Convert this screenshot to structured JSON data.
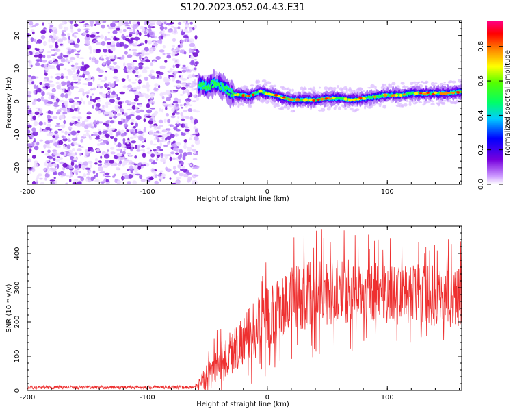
{
  "figure": {
    "title": "S120.2023.052.04.43.E31"
  },
  "chart_data": [
    {
      "type": "heatmap",
      "xlabel": "Height of straight line (km)",
      "ylabel": "Frequency (Hz)",
      "xlim": [
        -200,
        162
      ],
      "ylim": [
        -25,
        24.5
      ],
      "x_ticks": [
        -200,
        -100,
        0,
        100
      ],
      "y_ticks": [
        -20,
        -10,
        0,
        10,
        20
      ],
      "noise_region_x": [
        -200,
        -58
      ],
      "signal_ridge": {
        "x": [
          -57,
          -50,
          -45,
          -40,
          -35,
          -30,
          -25,
          -20,
          -15,
          -10,
          -5,
          0,
          10,
          20,
          30,
          40,
          50,
          60,
          70,
          80,
          90,
          100,
          110,
          120,
          130,
          140,
          150,
          162
        ],
        "freq": [
          5,
          4.5,
          5.5,
          5,
          4,
          2.5,
          2,
          2,
          1.5,
          2.5,
          3,
          2.5,
          1.5,
          0.5,
          0.5,
          0.5,
          1,
          1,
          0.5,
          1,
          1.5,
          2,
          2,
          2.5,
          2.5,
          2.5,
          2.5,
          3
        ]
      },
      "colorbar": {
        "label": "Normalized spectral amplitude",
        "range": [
          0,
          0.95
        ],
        "ticks": [
          0.0,
          0.2,
          0.4,
          0.6,
          0.8
        ]
      }
    },
    {
      "type": "line",
      "xlabel": "Height of straight line (km)",
      "ylabel": "SNR (10 * v/v)",
      "xlim": [
        -200,
        162
      ],
      "ylim": [
        0,
        480
      ],
      "x_ticks": [
        -200,
        -100,
        0,
        100
      ],
      "y_ticks": [
        0,
        100,
        200,
        300,
        400
      ],
      "color": "#ee3030",
      "envelope": {
        "x": [
          -200,
          -60,
          -50,
          -40,
          -30,
          -20,
          -10,
          0,
          10,
          20,
          30,
          40,
          60,
          80,
          100,
          120,
          140,
          162
        ],
        "mid": [
          9,
          9,
          40,
          80,
          110,
          150,
          180,
          210,
          240,
          260,
          275,
          285,
          290,
          290,
          285,
          280,
          275,
          270
        ],
        "amp": [
          5,
          5,
          40,
          60,
          70,
          75,
          85,
          90,
          95,
          100,
          100,
          100,
          95,
          90,
          90,
          90,
          90,
          90
        ]
      }
    }
  ]
}
